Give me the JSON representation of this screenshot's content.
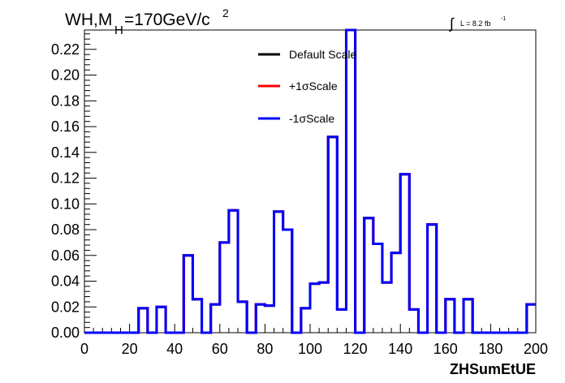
{
  "title": {
    "main_a": "WH,M",
    "sub": "H",
    "main_b": "=170GeV/c",
    "sup": "2"
  },
  "lumi": {
    "integral_symbol": "∫",
    "text": "L = 8.2 fb",
    "sup": "-1"
  },
  "chart_data": {
    "type": "line",
    "xlabel": "ZHSumEtUE",
    "ylabel": "",
    "xlim": [
      0,
      200
    ],
    "ylim": [
      0,
      0.235
    ],
    "x_ticks": [
      0,
      20,
      40,
      60,
      80,
      100,
      120,
      140,
      160,
      180,
      200
    ],
    "y_ticks": [
      0.0,
      0.02,
      0.04,
      0.06,
      0.08,
      0.1,
      0.12,
      0.14,
      0.16,
      0.18,
      0.2,
      0.22
    ],
    "x_tick_labels": [
      "0",
      "20",
      "40",
      "60",
      "80",
      "100",
      "120",
      "140",
      "160",
      "180",
      "200"
    ],
    "y_tick_labels": [
      "0.00",
      "0.02",
      "0.04",
      "0.06",
      "0.08",
      "0.10",
      "0.12",
      "0.14",
      "0.16",
      "0.18",
      "0.20",
      "0.22"
    ],
    "bin_edges": [
      0,
      4,
      8,
      12,
      16,
      20,
      24,
      28,
      32,
      36,
      40,
      44,
      48,
      52,
      56,
      60,
      64,
      68,
      72,
      76,
      80,
      84,
      88,
      92,
      96,
      100,
      104,
      108,
      112,
      116,
      120,
      124,
      128,
      132,
      136,
      140,
      144,
      148,
      152,
      156,
      160,
      164,
      168,
      172,
      176,
      180,
      184,
      188,
      192,
      196,
      200
    ],
    "series": [
      {
        "name": "Default Scale",
        "color": "#000000",
        "values": [
          0,
          0,
          0,
          0,
          0,
          0,
          0.019,
          0,
          0.02,
          0,
          0,
          0.06,
          0.026,
          0,
          0.022,
          0.07,
          0.095,
          0.024,
          0,
          0.022,
          0.021,
          0.094,
          0.08,
          0,
          0.019,
          0.038,
          0.039,
          0.152,
          0.018,
          0.236,
          0,
          0.089,
          0.069,
          0.039,
          0.062,
          0.123,
          0.018,
          0,
          0.084,
          0,
          0.026,
          0,
          0.026,
          0,
          0,
          0,
          0,
          0,
          0,
          0.022
        ]
      },
      {
        "name": "+1σScale",
        "color": "#ff0000",
        "values": [
          0,
          0,
          0,
          0,
          0,
          0,
          0.019,
          0,
          0.02,
          0,
          0,
          0.06,
          0.026,
          0,
          0.022,
          0.07,
          0.095,
          0.024,
          0,
          0.022,
          0.021,
          0.094,
          0.08,
          0,
          0.019,
          0.038,
          0.039,
          0.152,
          0.018,
          0.236,
          0,
          0.089,
          0.069,
          0.039,
          0.062,
          0.123,
          0.018,
          0,
          0.084,
          0,
          0.026,
          0,
          0.026,
          0,
          0,
          0,
          0,
          0,
          0,
          0.022
        ]
      },
      {
        "name": "-1σScale",
        "color": "#0000ff",
        "values": [
          0,
          0,
          0,
          0,
          0,
          0,
          0.019,
          0,
          0.02,
          0,
          0,
          0.06,
          0.026,
          0,
          0.022,
          0.07,
          0.095,
          0.024,
          0,
          0.022,
          0.021,
          0.094,
          0.08,
          0,
          0.019,
          0.038,
          0.039,
          0.152,
          0.018,
          0.236,
          0,
          0.089,
          0.069,
          0.039,
          0.062,
          0.123,
          0.018,
          0,
          0.084,
          0,
          0.026,
          0,
          0.026,
          0,
          0,
          0,
          0,
          0,
          0,
          0.022
        ]
      }
    ],
    "legend_placement": "top-center",
    "grid": false
  }
}
